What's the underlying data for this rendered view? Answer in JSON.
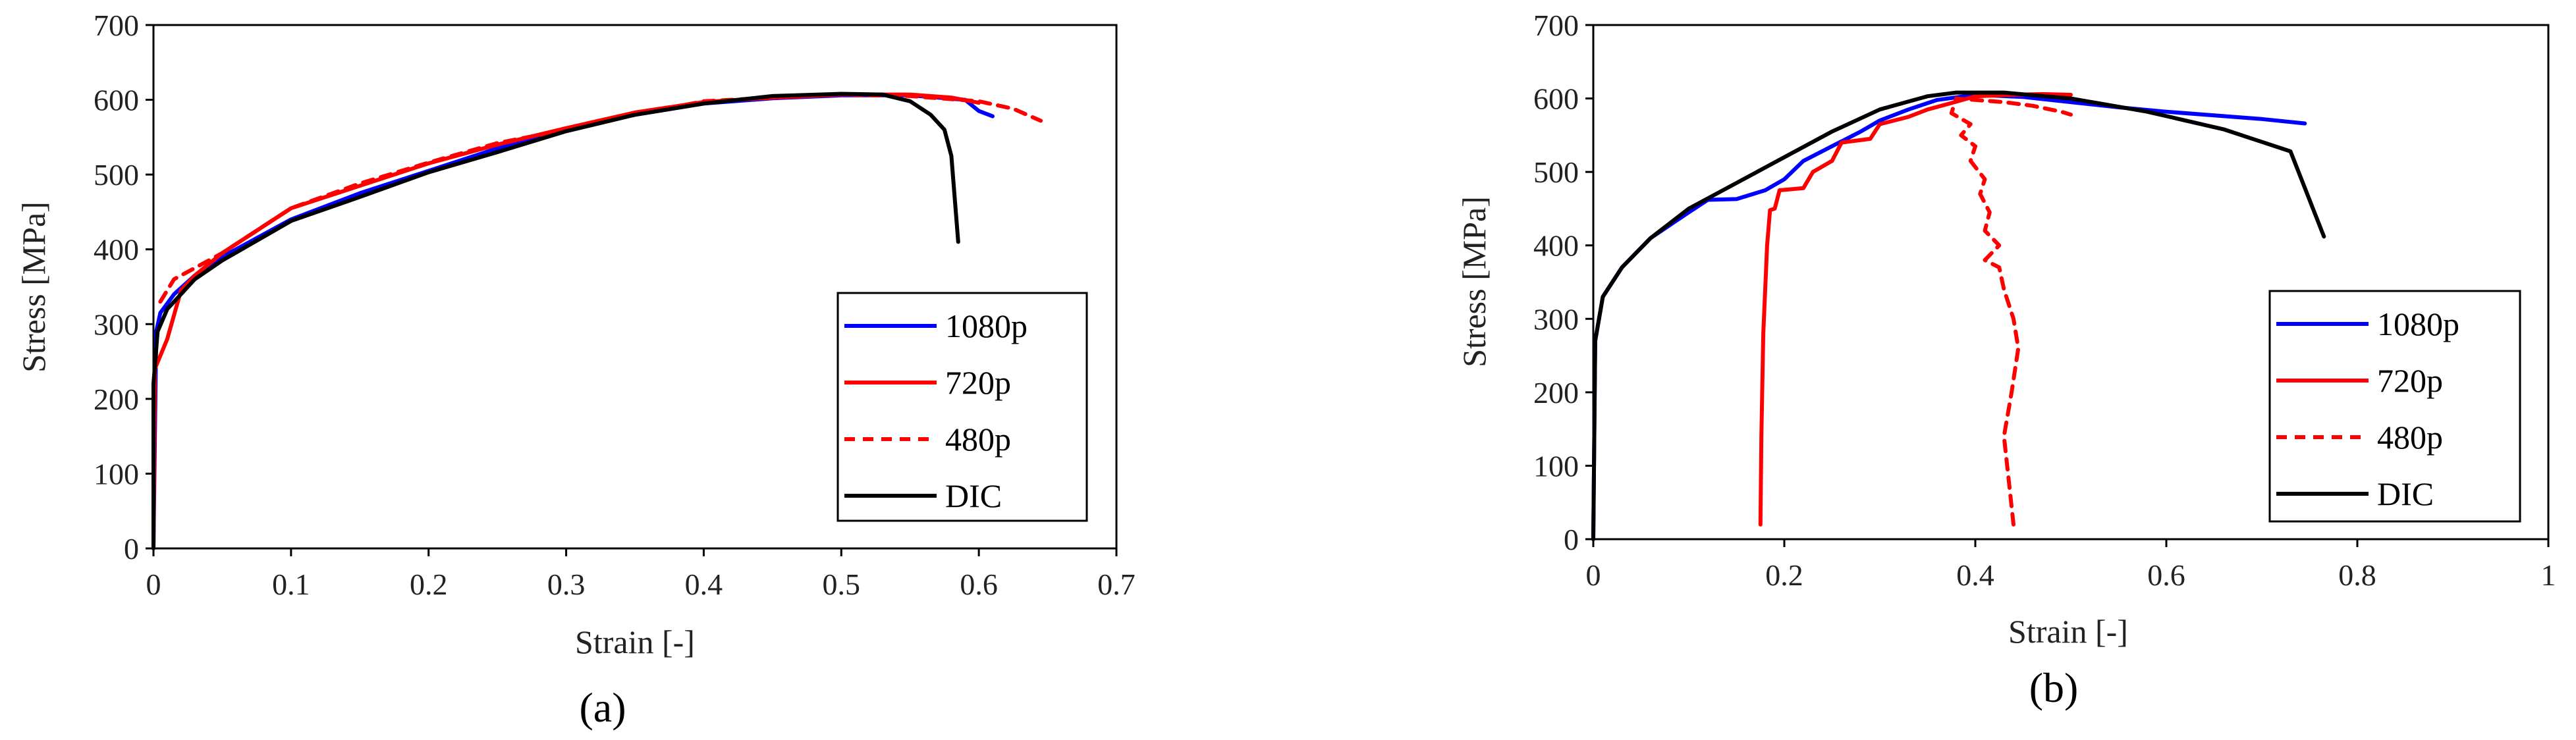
{
  "chart_data": [
    {
      "type": "line",
      "panel_label": "(a)",
      "xlabel": "Strain [-]",
      "ylabel": "Stress [MPa]",
      "xlim": [
        0,
        0.7
      ],
      "ylim": [
        0,
        700
      ],
      "xticks": [
        0,
        0.1,
        0.2,
        0.3,
        0.4,
        0.5,
        0.6,
        0.7
      ],
      "xtick_labels": [
        "0",
        "0.1",
        "0.2",
        "0.3",
        "0.4",
        "0.5",
        "0.6",
        "0.7"
      ],
      "yticks": [
        0,
        100,
        200,
        300,
        400,
        500,
        600,
        700
      ],
      "ytick_labels": [
        "0",
        "100",
        "200",
        "300",
        "400",
        "500",
        "600",
        "700"
      ],
      "legend_position": "bottom-right",
      "series": [
        {
          "name": "1080p",
          "color": "#0000ff",
          "dash": "solid",
          "points": [
            [
              0,
              0
            ],
            [
              0.002,
              290
            ],
            [
              0.005,
              315
            ],
            [
              0.015,
              340
            ],
            [
              0.03,
              365
            ],
            [
              0.05,
              390
            ],
            [
              0.1,
              440
            ],
            [
              0.15,
              475
            ],
            [
              0.2,
              505
            ],
            [
              0.25,
              535
            ],
            [
              0.3,
              560
            ],
            [
              0.35,
              580
            ],
            [
              0.4,
              595
            ],
            [
              0.45,
              602
            ],
            [
              0.5,
              606
            ],
            [
              0.55,
              606
            ],
            [
              0.59,
              600
            ],
            [
              0.6,
              585
            ],
            [
              0.61,
              578
            ]
          ]
        },
        {
          "name": "720p",
          "color": "#ff0000",
          "dash": "solid",
          "points": [
            [
              0,
              0
            ],
            [
              0.001,
              240
            ],
            [
              0.01,
              280
            ],
            [
              0.02,
              345
            ],
            [
              0.03,
              365
            ],
            [
              0.05,
              395
            ],
            [
              0.1,
              455
            ],
            [
              0.15,
              485
            ],
            [
              0.2,
              515
            ],
            [
              0.25,
              540
            ],
            [
              0.3,
              562
            ],
            [
              0.35,
              583
            ],
            [
              0.4,
              597
            ],
            [
              0.45,
              603
            ],
            [
              0.5,
              607
            ],
            [
              0.55,
              607
            ],
            [
              0.58,
              603
            ],
            [
              0.6,
              596
            ]
          ]
        },
        {
          "name": "480p",
          "color": "#ff0000",
          "dash": "dashed",
          "points": [
            [
              0.005,
              330
            ],
            [
              0.015,
              360
            ],
            [
              0.03,
              375
            ],
            [
              0.05,
              395
            ],
            [
              0.1,
              455
            ],
            [
              0.15,
              488
            ],
            [
              0.2,
              516
            ],
            [
              0.25,
              542
            ],
            [
              0.3,
              560
            ],
            [
              0.35,
              580
            ],
            [
              0.4,
              598
            ],
            [
              0.45,
              603
            ],
            [
              0.5,
              607
            ],
            [
              0.55,
              605
            ],
            [
              0.6,
              598
            ],
            [
              0.625,
              588
            ],
            [
              0.645,
              572
            ]
          ]
        },
        {
          "name": "DIC",
          "color": "#000000",
          "dash": "solid",
          "points": [
            [
              0,
              0
            ],
            [
              0,
              220
            ],
            [
              0.003,
              290
            ],
            [
              0.01,
              320
            ],
            [
              0.03,
              360
            ],
            [
              0.05,
              385
            ],
            [
              0.1,
              438
            ],
            [
              0.15,
              470
            ],
            [
              0.2,
              503
            ],
            [
              0.25,
              530
            ],
            [
              0.3,
              558
            ],
            [
              0.35,
              580
            ],
            [
              0.4,
              595
            ],
            [
              0.45,
              605
            ],
            [
              0.5,
              608
            ],
            [
              0.53,
              607
            ],
            [
              0.55,
              598
            ],
            [
              0.565,
              580
            ],
            [
              0.575,
              560
            ],
            [
              0.58,
              525
            ],
            [
              0.585,
              410
            ]
          ]
        }
      ]
    },
    {
      "type": "line",
      "panel_label": "(b)",
      "xlabel": "Strain [-]",
      "ylabel": "Stress [MPa]",
      "xlim": [
        0,
        1
      ],
      "ylim": [
        0,
        700
      ],
      "xticks": [
        0,
        0.2,
        0.4,
        0.6,
        0.8,
        1
      ],
      "xtick_labels": [
        "0",
        "0.2",
        "0.4",
        "0.6",
        "0.8",
        "1"
      ],
      "yticks": [
        0,
        100,
        200,
        300,
        400,
        500,
        600,
        700
      ],
      "ytick_labels": [
        "0",
        "100",
        "200",
        "300",
        "400",
        "500",
        "600",
        "700"
      ],
      "legend_position": "right",
      "series": [
        {
          "name": "1080p",
          "color": "#0000ff",
          "dash": "solid",
          "points": [
            [
              0,
              0
            ],
            [
              0.002,
              270
            ],
            [
              0.01,
              330
            ],
            [
              0.03,
              370
            ],
            [
              0.06,
              410
            ],
            [
              0.1,
              445
            ],
            [
              0.12,
              462
            ],
            [
              0.15,
              463
            ],
            [
              0.18,
              475
            ],
            [
              0.2,
              490
            ],
            [
              0.22,
              515
            ],
            [
              0.25,
              535
            ],
            [
              0.28,
              555
            ],
            [
              0.3,
              570
            ],
            [
              0.33,
              585
            ],
            [
              0.36,
              598
            ],
            [
              0.4,
              605
            ],
            [
              0.45,
              602
            ],
            [
              0.5,
              595
            ],
            [
              0.55,
              588
            ],
            [
              0.6,
              582
            ],
            [
              0.7,
              572
            ],
            [
              0.745,
              566
            ]
          ]
        },
        {
          "name": "720p",
          "color": "#ff0000",
          "dash": "solid",
          "points": [
            [
              0.175,
              20
            ],
            [
              0.176,
              140
            ],
            [
              0.178,
              280
            ],
            [
              0.182,
              400
            ],
            [
              0.185,
              448
            ],
            [
              0.19,
              450
            ],
            [
              0.195,
              475
            ],
            [
              0.22,
              478
            ],
            [
              0.23,
              500
            ],
            [
              0.25,
              515
            ],
            [
              0.26,
              540
            ],
            [
              0.29,
              545
            ],
            [
              0.3,
              565
            ],
            [
              0.33,
              575
            ],
            [
              0.35,
              585
            ],
            [
              0.37,
              592
            ],
            [
              0.4,
              603
            ],
            [
              0.44,
              605
            ],
            [
              0.47,
              606
            ],
            [
              0.5,
              605
            ]
          ]
        },
        {
          "name": "480p",
          "color": "#ff0000",
          "dash": "dashed",
          "points": [
            [
              0.44,
              20
            ],
            [
              0.435,
              80
            ],
            [
              0.43,
              140
            ],
            [
              0.438,
              200
            ],
            [
              0.445,
              260
            ],
            [
              0.44,
              300
            ],
            [
              0.43,
              340
            ],
            [
              0.425,
              370
            ],
            [
              0.41,
              380
            ],
            [
              0.425,
              400
            ],
            [
              0.41,
              420
            ],
            [
              0.415,
              445
            ],
            [
              0.405,
              470
            ],
            [
              0.41,
              490
            ],
            [
              0.395,
              515
            ],
            [
              0.4,
              535
            ],
            [
              0.385,
              550
            ],
            [
              0.395,
              565
            ],
            [
              0.375,
              580
            ],
            [
              0.38,
              600
            ],
            [
              0.4,
              598
            ],
            [
              0.43,
              595
            ],
            [
              0.46,
              590
            ],
            [
              0.49,
              582
            ],
            [
              0.5,
              578
            ]
          ]
        },
        {
          "name": "DIC",
          "color": "#000000",
          "dash": "solid",
          "points": [
            [
              0,
              0
            ],
            [
              0.002,
              270
            ],
            [
              0.01,
              330
            ],
            [
              0.03,
              370
            ],
            [
              0.06,
              410
            ],
            [
              0.1,
              450
            ],
            [
              0.15,
              485
            ],
            [
              0.2,
              520
            ],
            [
              0.25,
              555
            ],
            [
              0.3,
              585
            ],
            [
              0.35,
              603
            ],
            [
              0.38,
              608
            ],
            [
              0.43,
              608
            ],
            [
              0.5,
              600
            ],
            [
              0.58,
              582
            ],
            [
              0.66,
              558
            ],
            [
              0.73,
              528
            ],
            [
              0.765,
              412
            ]
          ]
        }
      ]
    }
  ]
}
